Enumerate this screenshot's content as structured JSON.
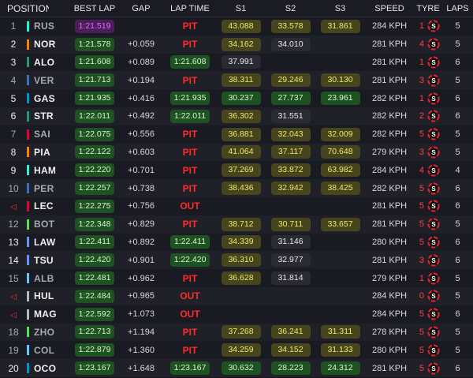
{
  "headers": {
    "position": "POSITION",
    "best_lap": "BEST LAP",
    "gap": "GAP",
    "lap_time": "LAP TIME",
    "s1": "S1",
    "s2": "S2",
    "s3": "S3",
    "speed": "SPEED",
    "tyre": "TYRE",
    "laps": "LAPS"
  },
  "colors": {
    "mercedes": "#27f4d2",
    "mclaren": "#ff8000",
    "aston": "#229971",
    "rb": "#6692ff",
    "alpine": "#0093cc",
    "ferrari": "#e8002d",
    "redbull": "#3671c6",
    "sauber": "#52e252",
    "williams": "#64c4ff",
    "haas": "#b6babd"
  },
  "rows": [
    {
      "pos": "1",
      "driver": "RUS",
      "team": "#27f4d2",
      "best": "1:21.519",
      "best_style": "purple",
      "gap": "",
      "lap": "PIT",
      "lap_style": "red",
      "s1": "43.088",
      "s1_style": "yellow",
      "s2": "33.578",
      "s2_style": "yellow",
      "s3": "31.861",
      "s3_style": "yellow",
      "speed": "284 KPH",
      "tyre_num": "1",
      "tyre": "soft",
      "laps": "5"
    },
    {
      "pos": "2",
      "driver": "NOR",
      "team": "#ff8000",
      "best": "1:21.578",
      "best_style": "green",
      "gap": "+0.059",
      "lap": "PIT",
      "lap_style": "red",
      "s1": "34.162",
      "s1_style": "yellow",
      "s2": "34.010",
      "s2_style": "white",
      "s3": "",
      "s3_style": "",
      "speed": "281 KPH",
      "tyre_num": "4",
      "tyre": "soft",
      "laps": "5"
    },
    {
      "pos": "3",
      "driver": "ALO",
      "team": "#229971",
      "best": "1:21.608",
      "best_style": "green",
      "gap": "+0.089",
      "lap": "1:21.608",
      "lap_style": "green",
      "s1": "37.991",
      "s1_style": "white",
      "s2": "",
      "s2_style": "",
      "s3": "",
      "s3_style": "",
      "speed": "281 KPH",
      "tyre_num": "1",
      "tyre": "soft",
      "laps": "6"
    },
    {
      "pos": "4",
      "driver": "VER",
      "team": "#3671c6",
      "best": "1:21.713",
      "best_style": "green",
      "gap": "+0.194",
      "lap": "PIT",
      "lap_style": "red",
      "s1": "38.311",
      "s1_style": "yellow",
      "s2": "29.246",
      "s2_style": "yellow",
      "s3": "30.130",
      "s3_style": "yellow",
      "speed": "281 KPH",
      "tyre_num": "3",
      "tyre": "soft",
      "laps": "5"
    },
    {
      "pos": "5",
      "driver": "GAS",
      "team": "#0093cc",
      "best": "1:21.935",
      "best_style": "green",
      "gap": "+0.416",
      "lap": "1:21.935",
      "lap_style": "green",
      "s1": "30.237",
      "s1_style": "green",
      "s2": "27.737",
      "s2_style": "green",
      "s3": "23.961",
      "s3_style": "green",
      "speed": "282 KPH",
      "tyre_num": "1",
      "tyre": "soft",
      "laps": "6"
    },
    {
      "pos": "6",
      "driver": "STR",
      "team": "#229971",
      "best": "1:22.011",
      "best_style": "green",
      "gap": "+0.492",
      "lap": "1:22.011",
      "lap_style": "green",
      "s1": "36.302",
      "s1_style": "yellow",
      "s2": "31.551",
      "s2_style": "white",
      "s3": "",
      "s3_style": "",
      "speed": "282 KPH",
      "tyre_num": "2",
      "tyre": "soft",
      "laps": "6"
    },
    {
      "pos": "7",
      "driver": "SAI",
      "team": "#e8002d",
      "best": "1:22.075",
      "best_style": "green",
      "gap": "+0.556",
      "lap": "PIT",
      "lap_style": "red",
      "s1": "36.881",
      "s1_style": "yellow",
      "s2": "32.043",
      "s2_style": "yellow",
      "s3": "32.009",
      "s3_style": "yellow",
      "speed": "282 KPH",
      "tyre_num": "5",
      "tyre": "soft",
      "laps": "5"
    },
    {
      "pos": "8",
      "driver": "PIA",
      "team": "#ff8000",
      "best": "1:22.122",
      "best_style": "green",
      "gap": "+0.603",
      "lap": "PIT",
      "lap_style": "red",
      "s1": "41.064",
      "s1_style": "yellow",
      "s2": "37.117",
      "s2_style": "yellow",
      "s3": "70.648",
      "s3_style": "yellow",
      "speed": "279 KPH",
      "tyre_num": "3",
      "tyre": "soft",
      "laps": "5"
    },
    {
      "pos": "9",
      "driver": "HAM",
      "team": "#27f4d2",
      "best": "1:22.220",
      "best_style": "green",
      "gap": "+0.701",
      "lap": "PIT",
      "lap_style": "red",
      "s1": "37.269",
      "s1_style": "yellow",
      "s2": "33.872",
      "s2_style": "yellow",
      "s3": "63.982",
      "s3_style": "yellow",
      "speed": "284 KPH",
      "tyre_num": "4",
      "tyre": "soft",
      "laps": "4"
    },
    {
      "pos": "10",
      "driver": "PER",
      "team": "#3671c6",
      "best": "1:22.257",
      "best_style": "green",
      "gap": "+0.738",
      "lap": "PIT",
      "lap_style": "red",
      "s1": "38.436",
      "s1_style": "yellow",
      "s2": "32.942",
      "s2_style": "yellow",
      "s3": "38.425",
      "s3_style": "yellow",
      "speed": "282 KPH",
      "tyre_num": "5",
      "tyre": "soft",
      "laps": "6"
    },
    {
      "pos": "",
      "driver": "LEC",
      "team": "#e8002d",
      "best": "1:22.275",
      "best_style": "green",
      "gap": "+0.756",
      "lap": "OUT",
      "lap_style": "red",
      "s1": "",
      "s1_style": "",
      "s2": "",
      "s2_style": "",
      "s3": "",
      "s3_style": "",
      "speed": "281 KPH",
      "tyre_num": "5",
      "tyre": "soft",
      "laps": "6",
      "out": true
    },
    {
      "pos": "12",
      "driver": "BOT",
      "team": "#52e252",
      "best": "1:22.348",
      "best_style": "green",
      "gap": "+0.829",
      "lap": "PIT",
      "lap_style": "red",
      "s1": "38.712",
      "s1_style": "yellow",
      "s2": "30.711",
      "s2_style": "yellow",
      "s3": "33.657",
      "s3_style": "yellow",
      "speed": "281 KPH",
      "tyre_num": "5",
      "tyre": "soft",
      "laps": "5"
    },
    {
      "pos": "13",
      "driver": "LAW",
      "team": "#6692ff",
      "best": "1:22.411",
      "best_style": "green",
      "gap": "+0.892",
      "lap": "1:22.411",
      "lap_style": "green",
      "s1": "34.339",
      "s1_style": "yellow",
      "s2": "31.146",
      "s2_style": "white",
      "s3": "",
      "s3_style": "",
      "speed": "280 KPH",
      "tyre_num": "5",
      "tyre": "soft",
      "laps": "6"
    },
    {
      "pos": "14",
      "driver": "TSU",
      "team": "#6692ff",
      "best": "1:22.420",
      "best_style": "green",
      "gap": "+0.901",
      "lap": "1:22.420",
      "lap_style": "green",
      "s1": "36.310",
      "s1_style": "yellow",
      "s2": "32.977",
      "s2_style": "white",
      "s3": "",
      "s3_style": "",
      "speed": "281 KPH",
      "tyre_num": "3",
      "tyre": "soft",
      "laps": "6"
    },
    {
      "pos": "15",
      "driver": "ALB",
      "team": "#64c4ff",
      "best": "1:22.481",
      "best_style": "green",
      "gap": "+0.962",
      "lap": "PIT",
      "lap_style": "red",
      "s1": "36.628",
      "s1_style": "yellow",
      "s2": "31.814",
      "s2_style": "white",
      "s3": "",
      "s3_style": "",
      "speed": "279 KPH",
      "tyre_num": "1",
      "tyre": "soft",
      "laps": "5"
    },
    {
      "pos": "",
      "driver": "HUL",
      "team": "#b6babd",
      "best": "1:22.484",
      "best_style": "green",
      "gap": "+0.965",
      "lap": "OUT",
      "lap_style": "red",
      "s1": "",
      "s1_style": "",
      "s2": "",
      "s2_style": "",
      "s3": "",
      "s3_style": "",
      "speed": "284 KPH",
      "tyre_num": "0",
      "tyre": "soft",
      "laps": "5",
      "out": true
    },
    {
      "pos": "",
      "driver": "MAG",
      "team": "#b6babd",
      "best": "1:22.592",
      "best_style": "green",
      "gap": "+1.073",
      "lap": "OUT",
      "lap_style": "red",
      "s1": "",
      "s1_style": "",
      "s2": "",
      "s2_style": "",
      "s3": "",
      "s3_style": "",
      "speed": "284 KPH",
      "tyre_num": "5",
      "tyre": "soft",
      "laps": "6",
      "out": true
    },
    {
      "pos": "18",
      "driver": "ZHO",
      "team": "#52e252",
      "best": "1:22.713",
      "best_style": "green",
      "gap": "+1.194",
      "lap": "PIT",
      "lap_style": "red",
      "s1": "37.268",
      "s1_style": "yellow",
      "s2": "36.241",
      "s2_style": "yellow",
      "s3": "31.311",
      "s3_style": "yellow",
      "speed": "278 KPH",
      "tyre_num": "5",
      "tyre": "soft",
      "laps": "5"
    },
    {
      "pos": "19",
      "driver": "COL",
      "team": "#64c4ff",
      "best": "1:22.879",
      "best_style": "green",
      "gap": "+1.360",
      "lap": "PIT",
      "lap_style": "red",
      "s1": "34.259",
      "s1_style": "yellow",
      "s2": "34.152",
      "s2_style": "yellow",
      "s3": "31.133",
      "s3_style": "yellow",
      "speed": "280 KPH",
      "tyre_num": "5",
      "tyre": "soft",
      "laps": "5"
    },
    {
      "pos": "20",
      "driver": "OCO",
      "team": "#0093cc",
      "best": "1:23.167",
      "best_style": "green",
      "gap": "+1.648",
      "lap": "1:23.167",
      "lap_style": "green",
      "s1": "30.632",
      "s1_style": "green",
      "s2": "28.223",
      "s2_style": "green",
      "s3": "24.312",
      "s3_style": "green",
      "speed": "281 KPH",
      "tyre_num": "5",
      "tyre": "soft",
      "laps": "6"
    }
  ]
}
